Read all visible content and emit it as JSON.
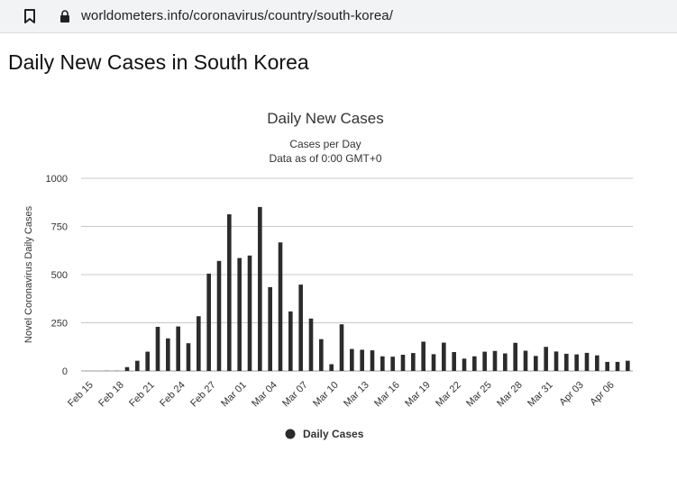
{
  "browser": {
    "url": "worldometers.info/coronavirus/country/south-korea/"
  },
  "page": {
    "heading": "Daily New Cases in South Korea"
  },
  "colors": {
    "bar": "#2b2b2b",
    "grid": "#c8c8c8",
    "text": "#333333"
  },
  "chart_data": {
    "type": "bar",
    "title": "Daily New Cases",
    "subtitle_lines": [
      "Cases per Day",
      "Data as of 0:00 GMT+0"
    ],
    "xlabel": "",
    "ylabel": "Novel Coronavirus Daily Cases",
    "ylim": [
      0,
      1000
    ],
    "yticks": [
      0,
      250,
      500,
      750,
      1000
    ],
    "grid": true,
    "legend_position": "bottom-center",
    "categories": [
      "Feb 15",
      "Feb 16",
      "Feb 17",
      "Feb 18",
      "Feb 19",
      "Feb 20",
      "Feb 21",
      "Feb 22",
      "Feb 23",
      "Feb 24",
      "Feb 25",
      "Feb 26",
      "Feb 27",
      "Feb 28",
      "Feb 29",
      "Mar 01",
      "Mar 02",
      "Mar 03",
      "Mar 04",
      "Mar 05",
      "Mar 06",
      "Mar 07",
      "Mar 08",
      "Mar 09",
      "Mar 10",
      "Mar 11",
      "Mar 12",
      "Mar 13",
      "Mar 14",
      "Mar 15",
      "Mar 16",
      "Mar 17",
      "Mar 18",
      "Mar 19",
      "Mar 20",
      "Mar 21",
      "Mar 22",
      "Mar 23",
      "Mar 24",
      "Mar 25",
      "Mar 26",
      "Mar 27",
      "Mar 28",
      "Mar 29",
      "Mar 30",
      "Mar 31",
      "Apr 01",
      "Apr 02",
      "Apr 03",
      "Apr 04",
      "Apr 05",
      "Apr 06",
      "Apr 07",
      "Apr 08"
    ],
    "tick_labels": [
      "Feb 15",
      "Feb 18",
      "Feb 21",
      "Feb 24",
      "Feb 27",
      "Mar 01",
      "Mar 04",
      "Mar 07",
      "Mar 10",
      "Mar 13",
      "Mar 16",
      "Mar 19",
      "Mar 22",
      "Mar 25",
      "Mar 28",
      "Mar 31",
      "Apr 03",
      "Apr 06"
    ],
    "series": [
      {
        "name": "Daily Cases",
        "values": [
          0,
          0,
          1,
          1,
          20,
          53,
          100,
          229,
          169,
          231,
          144,
          284,
          505,
          571,
          813,
          586,
          599,
          851,
          435,
          667,
          309,
          448,
          272,
          165,
          35,
          242,
          114,
          110,
          107,
          76,
          74,
          84,
          93,
          152,
          87,
          147,
          98,
          64,
          76,
          100,
          104,
          91,
          146,
          105,
          78,
          125,
          101,
          89,
          86,
          94,
          81,
          47,
          47,
          53
        ]
      }
    ]
  }
}
